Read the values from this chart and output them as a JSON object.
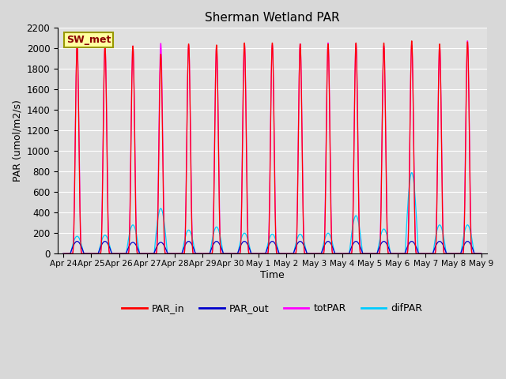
{
  "title": "Sherman Wetland PAR",
  "xlabel": "Time",
  "ylabel": "PAR (umol/m2/s)",
  "ylim": [
    0,
    2200
  ],
  "yticks": [
    0,
    200,
    400,
    600,
    800,
    1000,
    1200,
    1400,
    1600,
    1800,
    2000,
    2200
  ],
  "background_color": "#d8d8d8",
  "plot_bg_color": "#e0e0e0",
  "legend_entries": [
    "PAR_in",
    "PAR_out",
    "totPAR",
    "difPAR"
  ],
  "legend_colors": [
    "#ff0000",
    "#0000cc",
    "#ff00ff",
    "#00ccff"
  ],
  "station_label": "SW_met",
  "n_days": 15,
  "peaks_PAR_in": [
    2050,
    2030,
    2030,
    1950,
    2050,
    2040,
    2060,
    2060,
    2050,
    2050,
    2060,
    2060,
    2080,
    2050,
    2070
  ],
  "peaks_totPAR": [
    2030,
    2025,
    2030,
    2055,
    2035,
    2030,
    2050,
    2040,
    2050,
    2060,
    2050,
    2030,
    2040,
    2030,
    2080
  ],
  "peaks_difPAR": [
    170,
    180,
    280,
    440,
    230,
    260,
    200,
    190,
    190,
    200,
    370,
    240,
    790,
    280,
    280
  ],
  "peaks_PAR_out": [
    120,
    120,
    110,
    110,
    120,
    120,
    120,
    120,
    120,
    120,
    120,
    120,
    120,
    120,
    120
  ],
  "xtick_labels": [
    "Apr 24",
    "Apr 25",
    "Apr 26",
    "Apr 27",
    "Apr 28",
    "Apr 29",
    "Apr 30",
    "May 1",
    "May 2",
    "May 3",
    "May 4",
    "May 5",
    "May 6",
    "May 7",
    "May 8",
    "May 9"
  ]
}
